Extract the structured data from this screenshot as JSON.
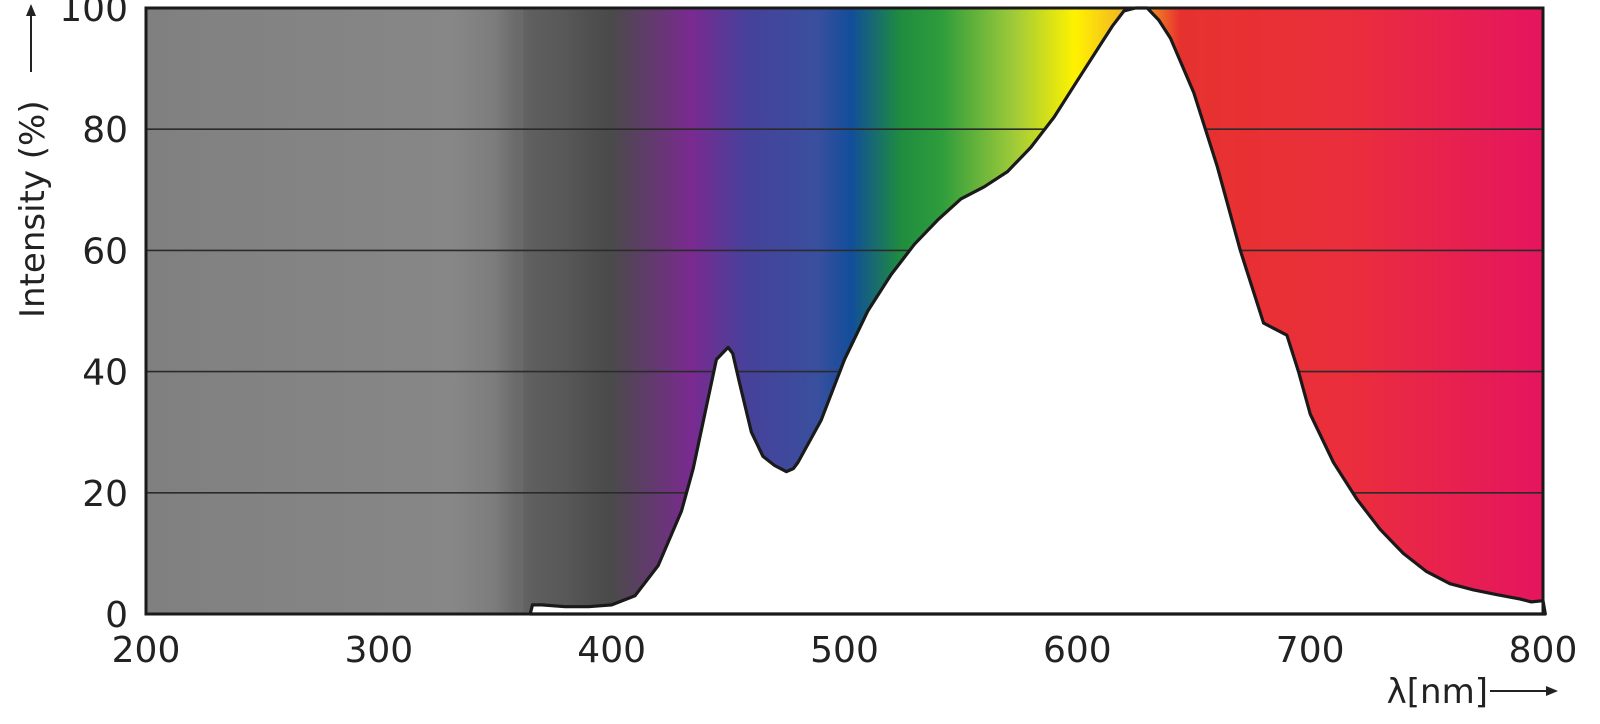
{
  "chart_data": {
    "type": "area",
    "title": "",
    "xlabel": "λ[nm]",
    "ylabel": "Intensity (%)",
    "xlim": [
      200,
      800
    ],
    "ylim": [
      0,
      100
    ],
    "grid": true,
    "x_ticks": [
      "200",
      "300",
      "400",
      "500",
      "600",
      "700",
      "800"
    ],
    "y_ticks": [
      "0",
      "20",
      "40",
      "60",
      "80",
      "100"
    ],
    "spectrum_background": true,
    "colors": {
      "curve_fill": "#ffffff",
      "curve_stroke": "#1a1a1a",
      "grid": "#2b2b2b",
      "uv_gray": "#7a7a7a",
      "violet": "#7a2a90",
      "blue": "#124e9a",
      "green": "#1f8c3f",
      "yellow": "#fff200",
      "orange": "#f39c1e",
      "red": "#e6322e",
      "magenta": "#e5155f"
    },
    "series": [
      {
        "x": [
          365,
          366,
          370,
          380,
          390,
          400,
          410,
          420,
          430,
          435,
          440,
          445,
          450,
          452,
          455,
          460,
          465,
          470,
          475,
          478,
          480,
          490,
          500,
          510,
          520,
          530,
          540,
          550,
          560,
          570,
          580,
          590,
          600,
          610,
          615,
          620,
          625,
          630,
          635,
          640,
          650,
          660,
          670,
          680,
          690,
          695,
          700,
          710,
          720,
          730,
          740,
          750,
          760,
          770,
          780,
          790,
          795,
          800,
          801
        ],
        "values": [
          0,
          1.5,
          1.5,
          1.2,
          1.2,
          1.5,
          3,
          8,
          17,
          24,
          33,
          42,
          44,
          43,
          38,
          30,
          26,
          24.5,
          23.5,
          24,
          25,
          32,
          42,
          50,
          56,
          61,
          65,
          68.5,
          70.5,
          73,
          77,
          82,
          88,
          94,
          97,
          99.5,
          100,
          100,
          98,
          95,
          86,
          74,
          60,
          48,
          46,
          40,
          33,
          25,
          19,
          14,
          10,
          7,
          5,
          4,
          3.2,
          2.5,
          2,
          2.2,
          0
        ]
      }
    ]
  }
}
